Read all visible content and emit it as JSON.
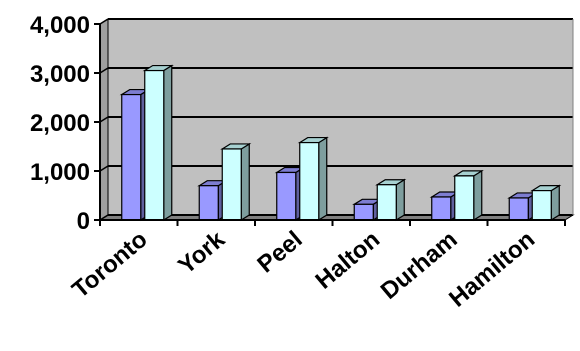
{
  "chart_data": {
    "type": "bar",
    "categories": [
      "Toronto",
      "York",
      "Peel",
      "Halton",
      "Durham",
      "Hamilton"
    ],
    "series": [
      {
        "values": [
          2560,
          700,
          970,
          320,
          470,
          450
        ],
        "color": "#9999ff"
      },
      {
        "values": [
          3050,
          1450,
          1580,
          720,
          900,
          600
        ],
        "color": "#ccffff"
      }
    ],
    "ylim": [
      0,
      4000
    ],
    "yticks": [
      0,
      1000,
      2000,
      3000,
      4000
    ],
    "ytick_labels": [
      "0",
      "1,000",
      "2,000",
      "3,000",
      "4,000"
    ],
    "grid": true,
    "colors": {
      "plot_background": "#c0c0c0",
      "gridline": "#000000"
    }
  }
}
